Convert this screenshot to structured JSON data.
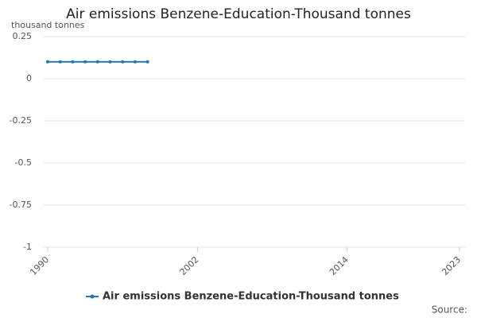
{
  "chart_data": {
    "type": "line",
    "title": "Air emissions Benzene-Education-Thousand tonnes",
    "y_label": "thousand tonnes",
    "source": "Source:",
    "x": [
      1990,
      1991,
      1992,
      1993,
      1994,
      1995,
      1996,
      1997,
      1998
    ],
    "series": [
      {
        "name": "Air emissions Benzene-Education-Thousand tonnes",
        "color": "#1f77b4",
        "values": [
          0.1,
          0.1,
          0.1,
          0.1,
          0.1,
          0.1,
          0.1,
          0.1,
          0.1
        ]
      }
    ],
    "xlim": [
      1990,
      2023
    ],
    "xticks": [
      1990,
      2002,
      2014,
      2023
    ],
    "ylim": [
      -1,
      0.25
    ],
    "yticks": [
      0.25,
      0,
      -0.25,
      -0.5,
      -0.75,
      -1
    ],
    "grid": true
  }
}
